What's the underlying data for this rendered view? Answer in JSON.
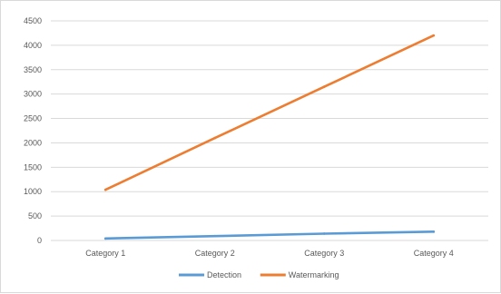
{
  "chart_data": {
    "type": "line",
    "title": "",
    "xlabel": "",
    "ylabel": "",
    "categories": [
      "Category 1",
      "Category 2",
      "Category 3",
      "Category 4"
    ],
    "ylim": [
      0,
      4500
    ],
    "yticks": [
      0,
      500,
      1000,
      1500,
      2000,
      2500,
      3000,
      3500,
      4000,
      4500
    ],
    "grid": true,
    "legend_position": "bottom",
    "series": [
      {
        "name": "Detection",
        "color": "#5b9bd5",
        "values": [
          40,
          90,
          140,
          180
        ]
      },
      {
        "name": "Watermarking",
        "color": "#ed7d31",
        "values": [
          1040,
          2100,
          3150,
          4200
        ]
      }
    ]
  }
}
